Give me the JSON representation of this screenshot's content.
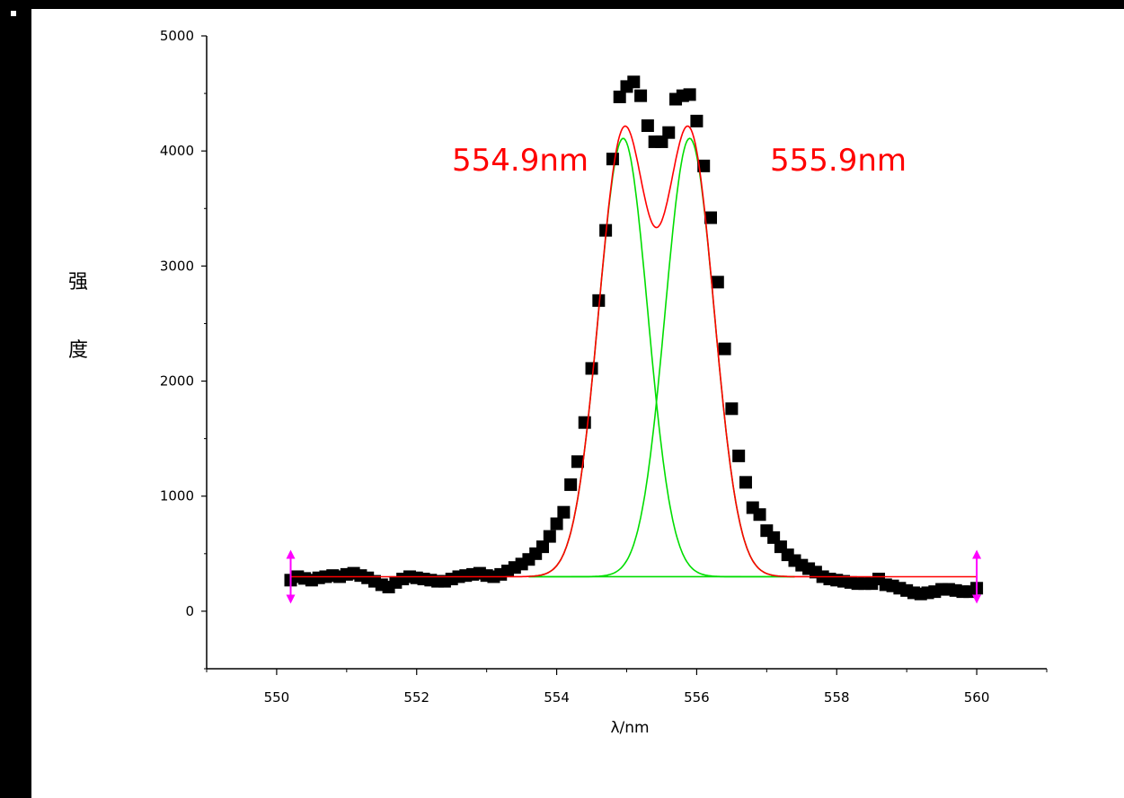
{
  "chart_data": {
    "type": "scatter",
    "xlabel": "λ/nm",
    "ylabel_chars": [
      "强",
      "度"
    ],
    "xlim": [
      549,
      561
    ],
    "ylim": [
      -500,
      5000
    ],
    "xticks": [
      550,
      552,
      554,
      556,
      558,
      560
    ],
    "yticks": [
      0,
      1000,
      2000,
      3000,
      4000,
      5000
    ],
    "grid": false,
    "annotations": [
      {
        "text": "554.9nm",
        "x": 553.73,
        "y": 4000
      },
      {
        "text": "555.9nm",
        "x": 558.45,
        "y": 4000
      }
    ],
    "colors": {
      "points": "#000000",
      "fit": "#ff0000",
      "components": "#00dd00",
      "markers": "#ff00ff",
      "annotation": "#ff0000"
    },
    "series": [
      {
        "type": "scatter",
        "x": [
          550.2,
          550.3,
          550.4,
          550.5,
          550.6,
          550.7,
          550.8,
          550.9,
          551.0,
          551.1,
          551.2,
          551.3,
          551.4,
          551.5,
          551.6,
          551.7,
          551.8,
          551.9,
          552.0,
          552.1,
          552.2,
          552.3,
          552.4,
          552.5,
          552.6,
          552.7,
          552.8,
          552.9,
          553.0,
          553.1,
          553.2,
          553.3,
          553.4,
          553.5,
          553.6,
          553.7,
          553.8,
          553.9,
          554.0,
          554.1,
          554.2,
          554.3,
          554.4,
          554.5,
          554.6,
          554.7,
          554.8,
          554.9,
          555.0,
          555.1,
          555.2,
          555.3,
          555.4,
          555.5,
          555.6,
          555.7,
          555.8,
          555.9,
          556.0,
          556.1,
          556.2,
          556.3,
          556.4,
          556.5,
          556.6,
          556.7,
          556.8,
          556.9,
          557.0,
          557.1,
          557.2,
          557.3,
          557.4,
          557.5,
          557.6,
          557.7,
          557.8,
          557.9,
          558.0,
          558.1,
          558.2,
          558.3,
          558.4,
          558.5,
          558.6,
          558.7,
          558.8,
          558.9,
          559.0,
          559.1,
          559.2,
          559.3,
          559.4,
          559.5,
          559.6,
          559.7,
          559.8,
          559.9,
          560.0
        ],
        "y": [
          270,
          300,
          285,
          270,
          290,
          300,
          310,
          300,
          320,
          330,
          310,
          290,
          260,
          230,
          210,
          250,
          280,
          300,
          290,
          280,
          270,
          260,
          260,
          280,
          300,
          310,
          320,
          330,
          310,
          300,
          320,
          350,
          380,
          410,
          450,
          500,
          560,
          650,
          760,
          860,
          1100,
          1300,
          1640,
          2110,
          2700,
          3310,
          3930,
          4470,
          4560,
          4600,
          4480,
          4220,
          4080,
          4080,
          4160,
          4450,
          4480,
          4490,
          4260,
          3870,
          3420,
          2860,
          2280,
          1760,
          1350,
          1120,
          900,
          840,
          700,
          640,
          560,
          490,
          440,
          400,
          370,
          340,
          300,
          280,
          270,
          260,
          250,
          240,
          240,
          240,
          280,
          230,
          220,
          200,
          180,
          160,
          150,
          160,
          170,
          190,
          190,
          180,
          170,
          170,
          200
        ]
      },
      {
        "name": "",
        "type": "fit",
        "baseline": 300,
        "amplitude": 3810,
        "center": 554.95,
        "sigma": 0.35,
        "peaks": [
          554.95,
          555.9
        ]
      }
    ],
    "range_markers": [
      550.2,
      560.0
    ]
  }
}
